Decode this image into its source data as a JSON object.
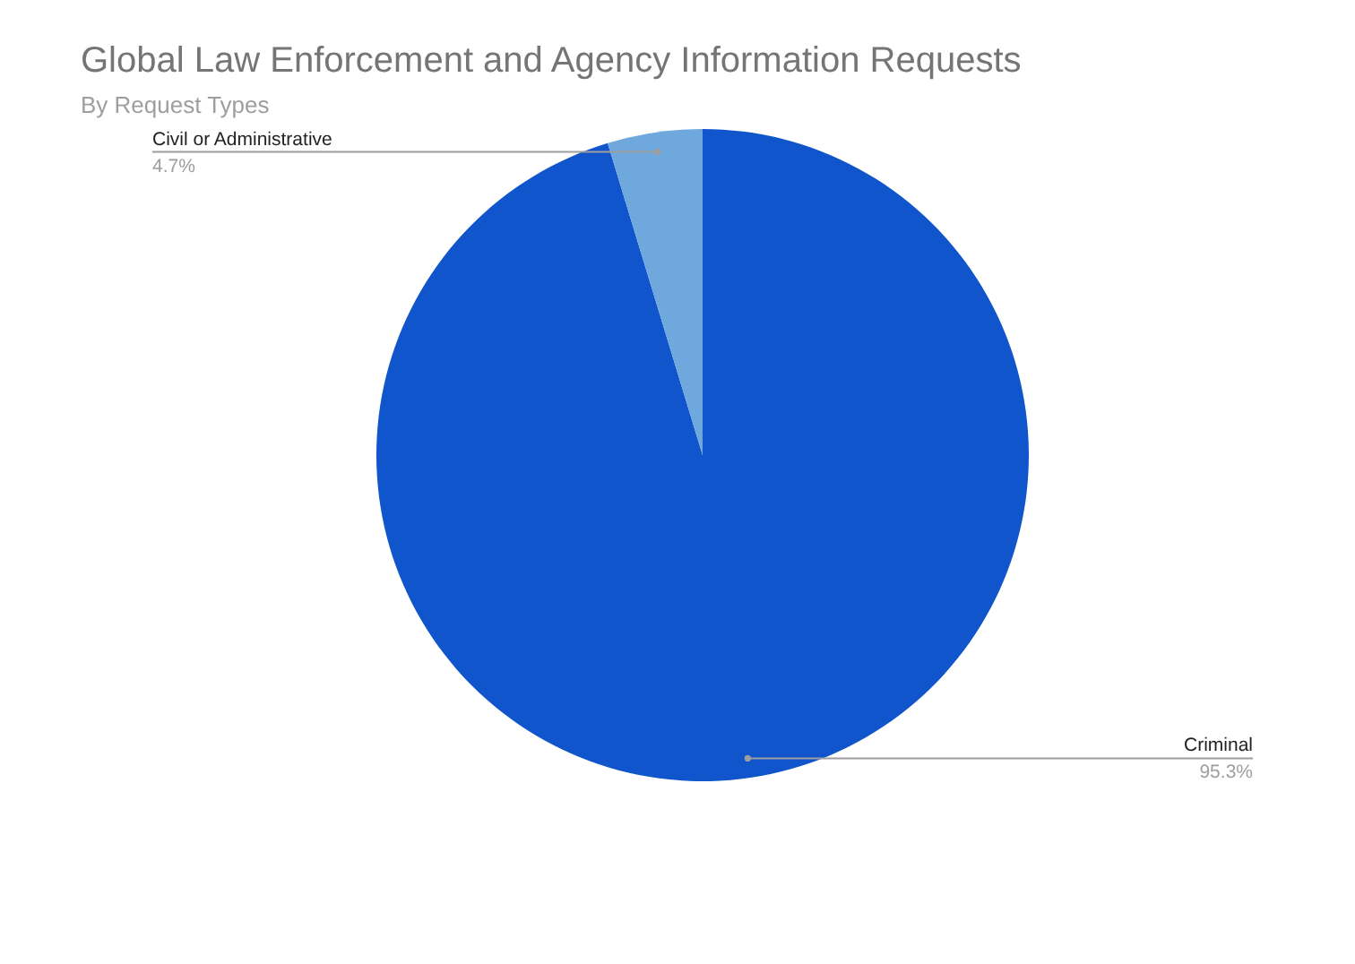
{
  "chart_data": {
    "type": "pie",
    "title": "Global Law Enforcement and Agency Information Requests",
    "subtitle": "By Request Types",
    "categories": [
      "Criminal",
      "Civil or Administrative"
    ],
    "values": [
      95.3,
      4.7
    ],
    "colors": [
      "#1155cc",
      "#6fa8dc"
    ],
    "value_labels": [
      "95.3%",
      "4.7%"
    ]
  }
}
